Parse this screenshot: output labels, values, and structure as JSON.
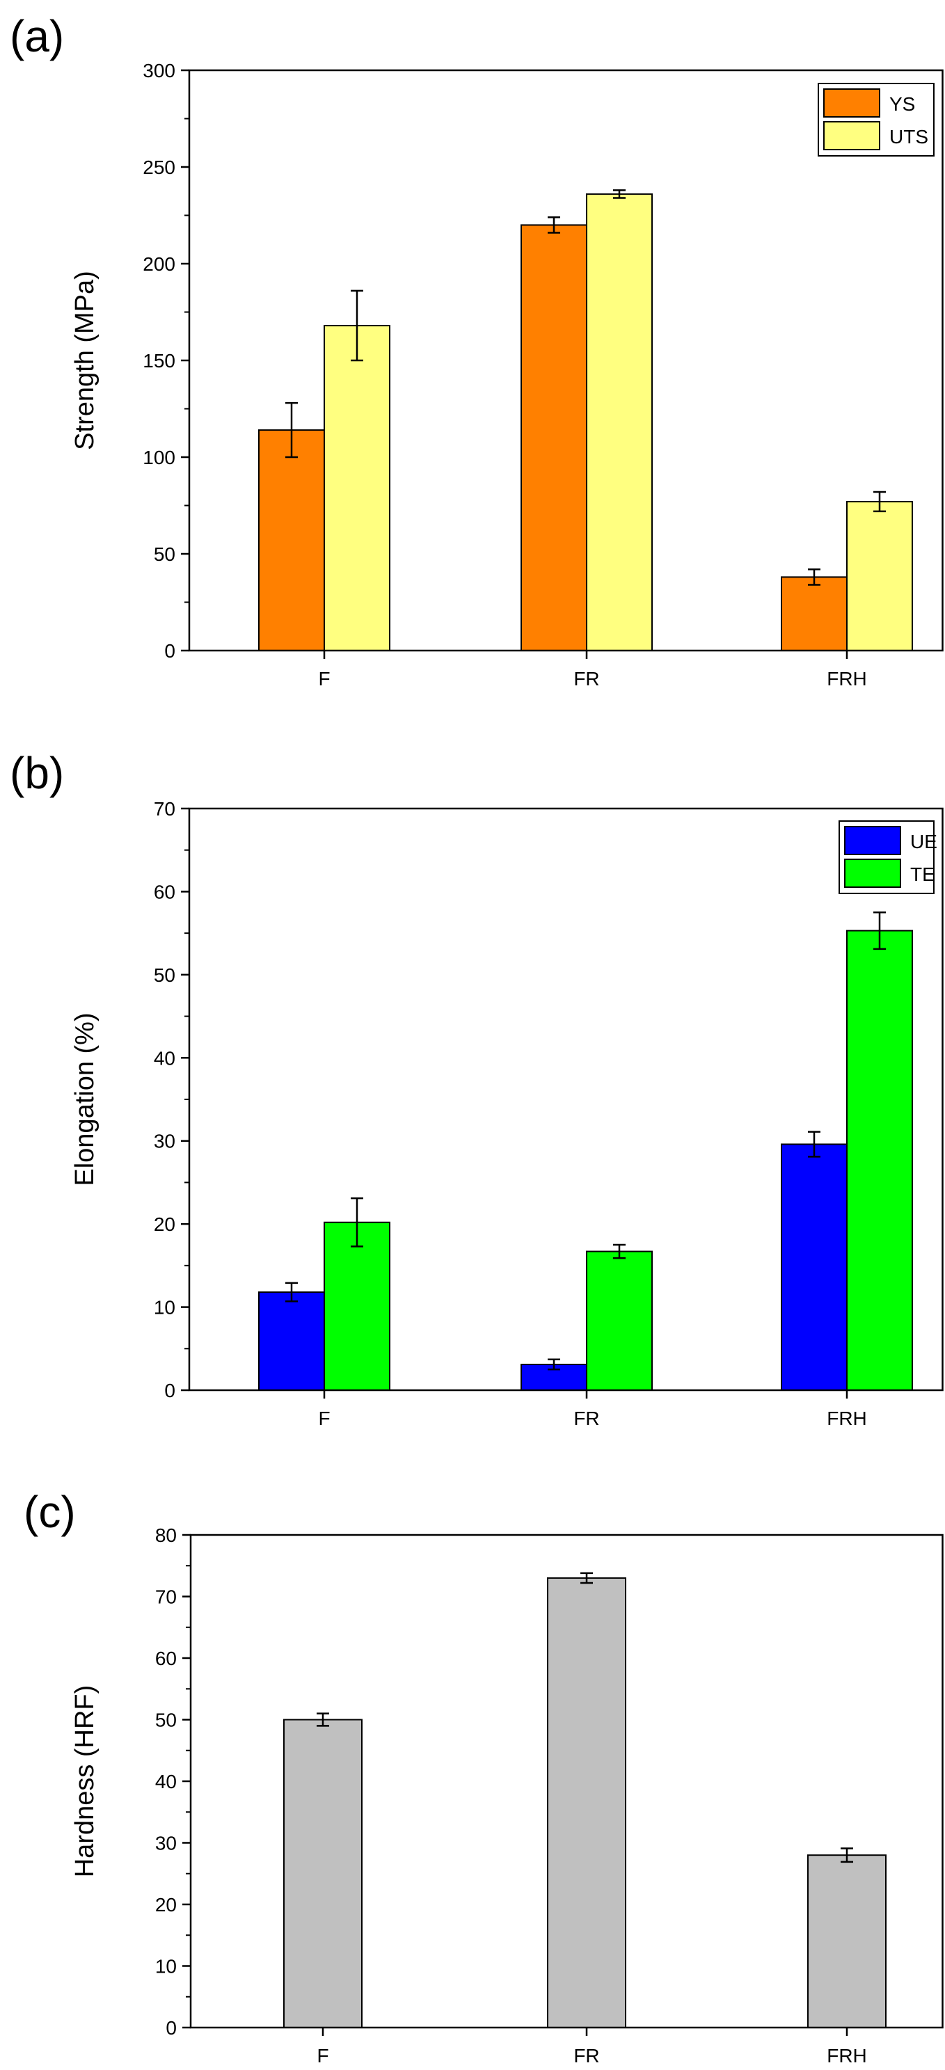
{
  "chart_data": [
    {
      "type": "bar",
      "panel_label": "(a)",
      "title": "",
      "xlabel": "",
      "ylabel": "Strength (MPa)",
      "categories": [
        "F",
        "FR",
        "FRH"
      ],
      "ylim": [
        0,
        300
      ],
      "yticks": [
        0,
        50,
        100,
        150,
        200,
        250,
        300
      ],
      "grid": false,
      "legend_position": "top-right",
      "series": [
        {
          "name": "YS",
          "color": "#ff8000",
          "values": [
            114,
            220,
            38
          ],
          "errors": [
            14,
            4,
            4
          ]
        },
        {
          "name": "UTS",
          "color": "#ffff80",
          "values": [
            168,
            236,
            77
          ],
          "errors": [
            18,
            2,
            5
          ]
        }
      ]
    },
    {
      "type": "bar",
      "panel_label": "(b)",
      "title": "",
      "xlabel": "",
      "ylabel": "Elongation (%)",
      "categories": [
        "F",
        "FR",
        "FRH"
      ],
      "ylim": [
        0,
        70
      ],
      "yticks": [
        0,
        10,
        20,
        30,
        40,
        50,
        60,
        70
      ],
      "grid": false,
      "legend_position": "top-right",
      "series": [
        {
          "name": "UE",
          "color": "#0000ff",
          "values": [
            11.8,
            3.1,
            29.6
          ],
          "errors": [
            1.1,
            0.6,
            1.5
          ]
        },
        {
          "name": "TE",
          "color": "#00ff00",
          "values": [
            20.2,
            16.7,
            55.3
          ],
          "errors": [
            2.9,
            0.8,
            2.2
          ]
        }
      ]
    },
    {
      "type": "bar",
      "panel_label": "(c)",
      "title": "",
      "xlabel": "",
      "ylabel": "Hardness (HRF)",
      "categories": [
        "F",
        "FR",
        "FRH"
      ],
      "ylim": [
        0,
        80
      ],
      "yticks": [
        0,
        10,
        20,
        30,
        40,
        50,
        60,
        70,
        80
      ],
      "grid": false,
      "legend_position": "none",
      "series": [
        {
          "name": "Hardness",
          "color": "#c0c0c0",
          "values": [
            50,
            73,
            28
          ],
          "errors": [
            1,
            0.8,
            1.1
          ]
        }
      ]
    }
  ]
}
